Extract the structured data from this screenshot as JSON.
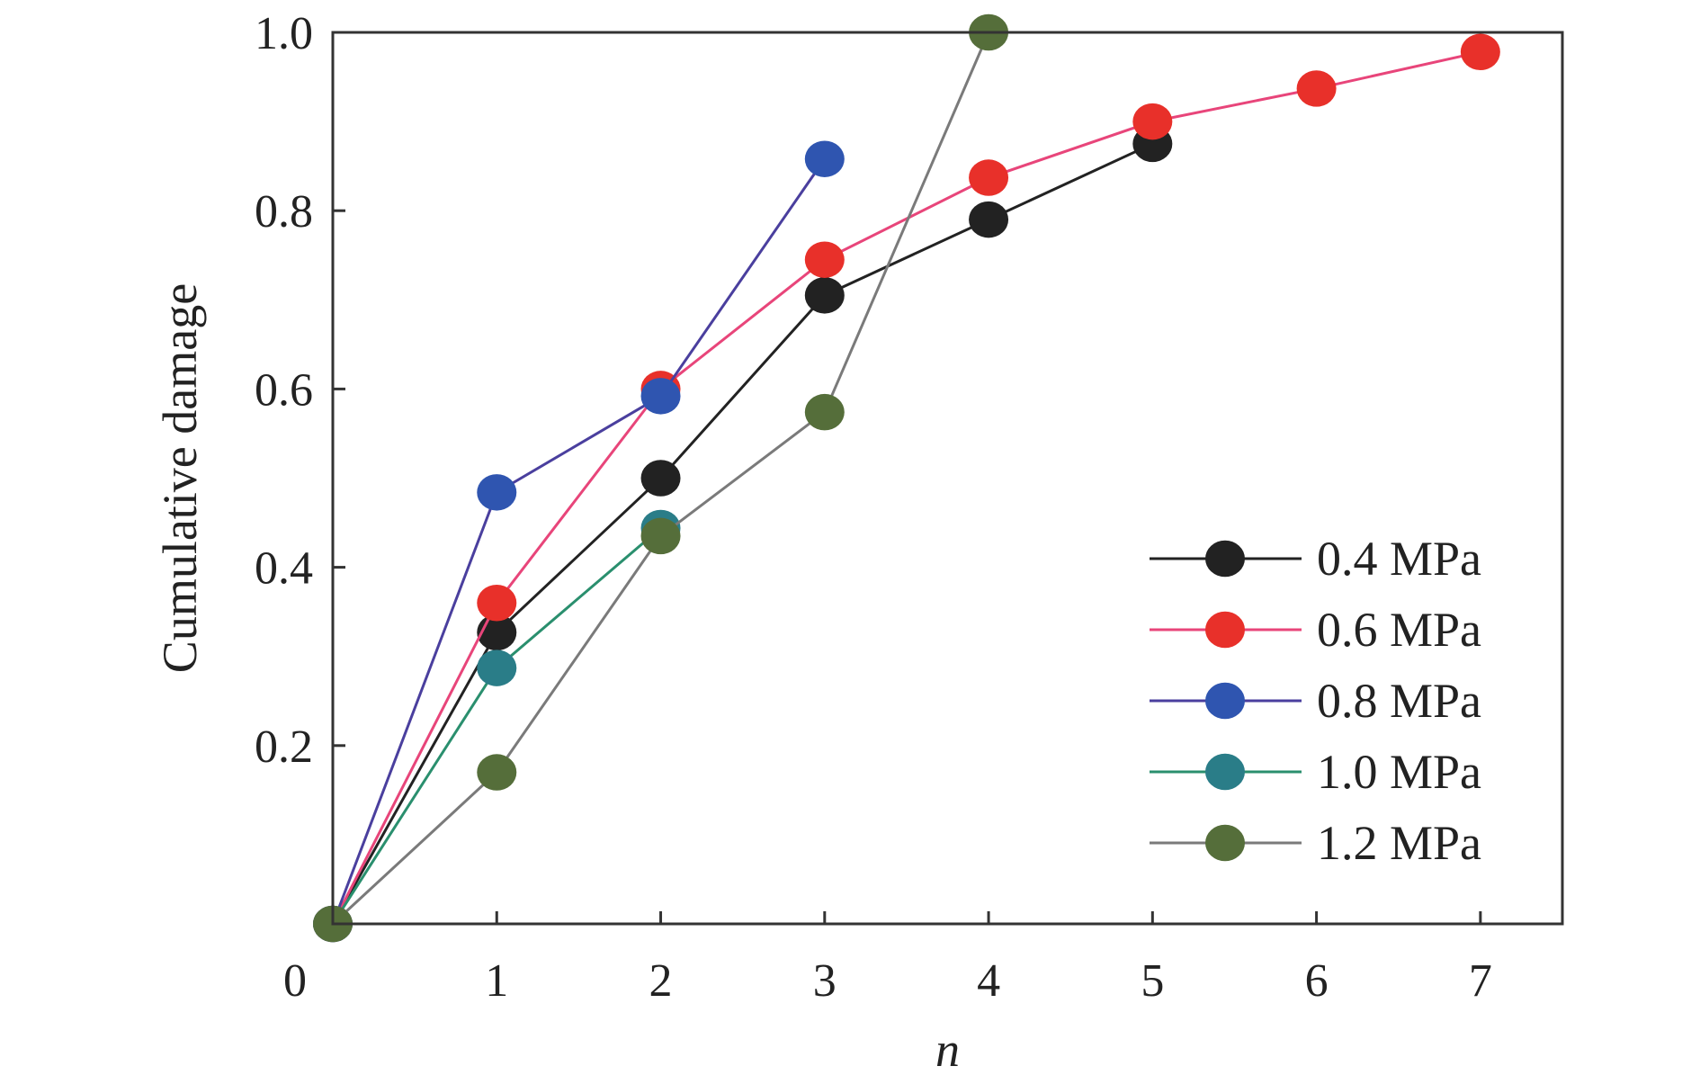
{
  "chart_data": {
    "type": "line",
    "title": "",
    "xlabel": "n",
    "ylabel": "Cumulative damage",
    "xlim": [
      0,
      7.5
    ],
    "ylim": [
      0,
      1.0
    ],
    "x_ticks": [
      0,
      1,
      2,
      3,
      4,
      5,
      6,
      7
    ],
    "x_tick_labels": [
      "0",
      "1",
      "2",
      "3",
      "4",
      "5",
      "6",
      "7"
    ],
    "y_ticks": [
      0.2,
      0.4,
      0.6,
      0.8,
      1.0
    ],
    "y_tick_labels": [
      "0.2",
      "0.4",
      "0.6",
      "0.8",
      "1.0"
    ],
    "grid": false,
    "legend_position": "bottom-right",
    "series": [
      {
        "name": "0.4 MPa",
        "color": "#222222",
        "line_color": "#222222",
        "x": [
          0,
          1,
          2,
          3,
          4,
          5
        ],
        "y": [
          0,
          0.327,
          0.5,
          0.705,
          0.79,
          0.875
        ]
      },
      {
        "name": "0.6 MPa",
        "color": "#e8302a",
        "line_color": "#e8457a",
        "x": [
          0,
          1,
          2,
          3,
          4,
          5,
          6,
          7
        ],
        "y": [
          0,
          0.36,
          0.6,
          0.745,
          0.837,
          0.9,
          0.937,
          0.978
        ]
      },
      {
        "name": "0.8 MPa",
        "color": "#2f55b0",
        "line_color": "#4a3f9e",
        "x": [
          0,
          1,
          2,
          3
        ],
        "y": [
          0,
          0.484,
          0.592,
          0.858
        ]
      },
      {
        "name": "1.0 MPa",
        "color": "#2a7d88",
        "line_color": "#2a8f6e",
        "x": [
          0,
          1,
          2
        ],
        "y": [
          0,
          0.287,
          0.444
        ]
      },
      {
        "name": "1.2 MPa",
        "color": "#556e3a",
        "line_color": "#7a7a7a",
        "x": [
          0,
          1,
          2,
          3,
          4
        ],
        "y": [
          0,
          0.17,
          0.435,
          0.574,
          1.0
        ]
      }
    ]
  }
}
